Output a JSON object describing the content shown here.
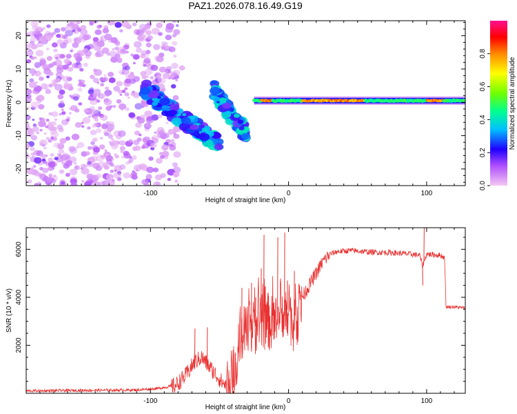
{
  "figure_title": "PAZ1.2026.078.16.49.G19",
  "colors": {
    "background": "#ffffff",
    "snr_line": "#e8302f",
    "axis": "#000000"
  },
  "chart_data": [
    {
      "type": "heatmap",
      "title": "",
      "xlabel": "Height of straight line (km)",
      "ylabel": "Frequency (Hz)",
      "xlim": [
        -190,
        128
      ],
      "ylim": [
        -25,
        24.5
      ],
      "xticks": [
        -100,
        0,
        100
      ],
      "yticks": [
        -20,
        -10,
        0,
        10,
        20
      ],
      "colorbar": {
        "label": "Normalized spectral amplitude",
        "range": [
          0,
          1
        ],
        "ticks": [
          0.0,
          0.2,
          0.4,
          0.6,
          0.8
        ],
        "tick_labels": [
          "0.0",
          "0.2",
          "0.4",
          "0.6",
          "0.8"
        ],
        "stops": [
          "#f3c8f0",
          "#9a00ff",
          "#2000ff",
          "#00c0ff",
          "#00ff60",
          "#88ff00",
          "#ffff00",
          "#ff8800",
          "#ff0000",
          "#ff1090"
        ]
      },
      "features": {
        "noise_region_x": [
          -190,
          -80
        ],
        "noise_amplitude": [
          0.02,
          0.15
        ],
        "descending_branch_1": {
          "x": [
            -105,
            -50
          ],
          "y": [
            4,
            -13
          ],
          "amplitude": 0.3
        },
        "descending_branch_2": {
          "x": [
            -55,
            -30
          ],
          "y": [
            4,
            -10
          ],
          "amplitude": 0.3
        },
        "carrier_line": {
          "x": [
            -25,
            128
          ],
          "y": 0.5,
          "amplitude_peak": 0.85,
          "peak_segments": [
            [
              -20,
              -12
            ],
            [
              10,
              55
            ],
            [
              100,
              112
            ]
          ]
        }
      }
    },
    {
      "type": "line",
      "title": "",
      "xlabel": "Height of straight line (km)",
      "ylabel": "SNR (10 * v/v)",
      "xlim": [
        -190,
        128
      ],
      "ylim": [
        0,
        6900
      ],
      "xticks": [
        -100,
        0,
        100
      ],
      "yticks": [
        2000,
        4000,
        6000
      ],
      "series": [
        {
          "name": "SNR",
          "points": [
            [
              -190,
              100
            ],
            [
              -150,
              120
            ],
            [
              -110,
              140
            ],
            [
              -95,
              200
            ],
            [
              -82,
              320
            ],
            [
              -75,
              700
            ],
            [
              -68,
              1300
            ],
            [
              -63,
              1500
            ],
            [
              -58,
              1150
            ],
            [
              -53,
              800
            ],
            [
              -48,
              450
            ],
            [
              -44,
              300
            ],
            [
              -40,
              700
            ],
            [
              -37,
              1600
            ],
            [
              -33,
              2300
            ],
            [
              -28,
              2600
            ],
            [
              -22,
              2900
            ],
            [
              -16,
              3000
            ],
            [
              -12,
              2900
            ],
            [
              -8,
              2900
            ],
            [
              -4,
              3100
            ],
            [
              0,
              3600
            ],
            [
              4,
              2600
            ],
            [
              8,
              3600
            ],
            [
              10,
              4000
            ],
            [
              15,
              4500
            ],
            [
              20,
              5000
            ],
            [
              25,
              5500
            ],
            [
              30,
              5800
            ],
            [
              35,
              5900
            ],
            [
              45,
              5950
            ],
            [
              60,
              5880
            ],
            [
              75,
              5860
            ],
            [
              88,
              5800
            ],
            [
              95,
              5750
            ],
            [
              97,
              5300
            ],
            [
              100,
              5800
            ],
            [
              110,
              5750
            ],
            [
              113,
              5650
            ],
            [
              114,
              3600
            ],
            [
              120,
              3600
            ],
            [
              128,
              3550
            ]
          ],
          "spikes": [
            [
              -68,
              2700
            ],
            [
              -59,
              2750
            ],
            [
              -34,
              4400
            ],
            [
              -27,
              4600
            ],
            [
              -24,
              4000
            ],
            [
              -20,
              5200
            ],
            [
              -18,
              6600
            ],
            [
              -15,
              4200
            ],
            [
              -8,
              6500
            ],
            [
              -3,
              6700
            ],
            [
              -1,
              4700
            ],
            [
              4,
              5100
            ],
            [
              98,
              6900
            ],
            [
              97,
              4500
            ]
          ]
        }
      ]
    }
  ]
}
